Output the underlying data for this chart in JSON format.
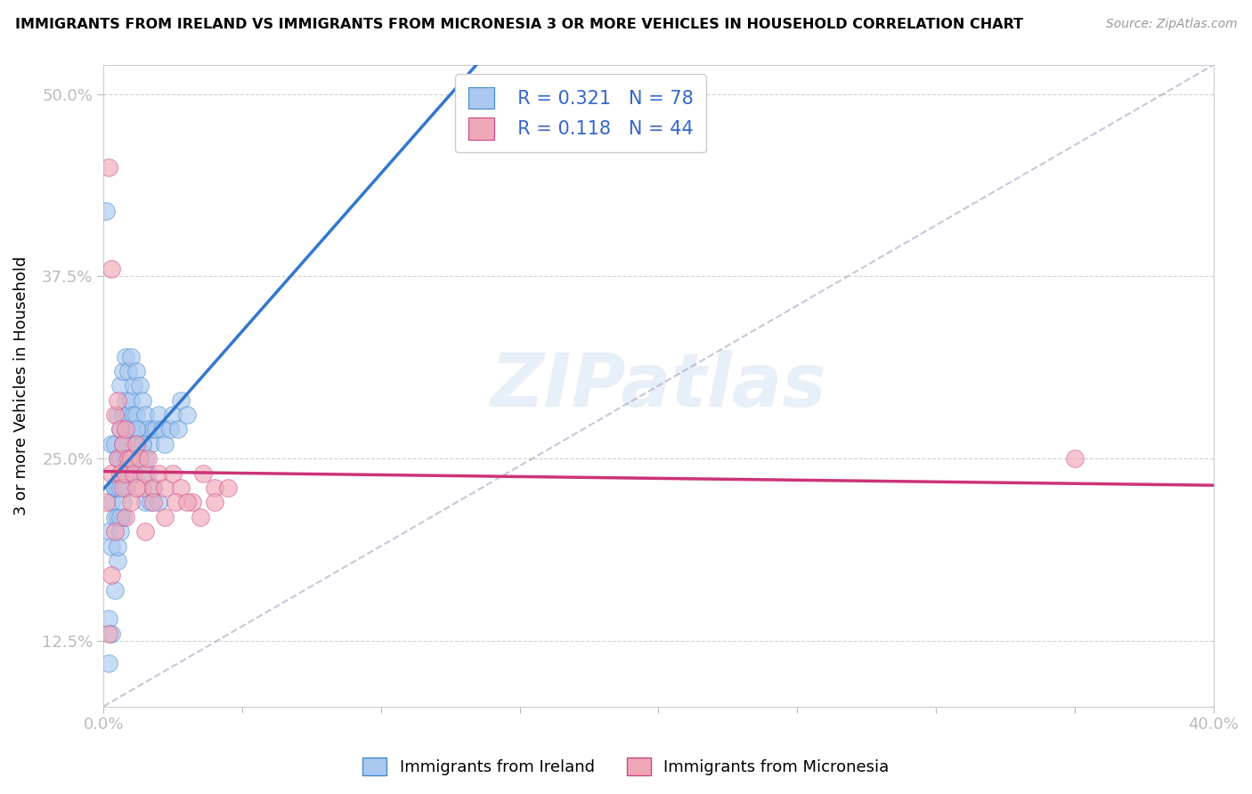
{
  "title": "IMMIGRANTS FROM IRELAND VS IMMIGRANTS FROM MICRONESIA 3 OR MORE VEHICLES IN HOUSEHOLD CORRELATION CHART",
  "source": "Source: ZipAtlas.com",
  "ylabel": "3 or more Vehicles in Household",
  "legend_label_blue": "Immigrants from Ireland",
  "legend_label_pink": "Immigrants from Micronesia",
  "R_blue": 0.321,
  "N_blue": 78,
  "R_pink": 0.118,
  "N_pink": 44,
  "xlim": [
    0.0,
    0.4
  ],
  "ylim": [
    0.08,
    0.52
  ],
  "xtick_vals": [
    0.0,
    0.05,
    0.1,
    0.15,
    0.2,
    0.25,
    0.3,
    0.35,
    0.4
  ],
  "ytick_vals": [
    0.125,
    0.25,
    0.375,
    0.5
  ],
  "ytick_labels": [
    "12.5%",
    "25.0%",
    "37.5%",
    "50.0%"
  ],
  "color_blue_fill": "#aac8f0",
  "color_blue_edge": "#4488cc",
  "color_pink_fill": "#f0a8b8",
  "color_pink_edge": "#cc4488",
  "color_blue_line": "#3377cc",
  "color_pink_line": "#cc3377",
  "color_ref_line": "#9999bb",
  "watermark": "ZIPatlas",
  "blue_x": [
    0.001,
    0.002,
    0.002,
    0.003,
    0.003,
    0.003,
    0.004,
    0.004,
    0.004,
    0.004,
    0.005,
    0.005,
    0.005,
    0.005,
    0.005,
    0.006,
    0.006,
    0.006,
    0.006,
    0.006,
    0.007,
    0.007,
    0.007,
    0.007,
    0.007,
    0.008,
    0.008,
    0.008,
    0.008,
    0.009,
    0.009,
    0.009,
    0.01,
    0.01,
    0.01,
    0.01,
    0.011,
    0.011,
    0.011,
    0.012,
    0.012,
    0.012,
    0.013,
    0.013,
    0.014,
    0.014,
    0.015,
    0.015,
    0.016,
    0.017,
    0.018,
    0.019,
    0.02,
    0.021,
    0.022,
    0.024,
    0.025,
    0.027,
    0.028,
    0.03,
    0.002,
    0.003,
    0.004,
    0.005,
    0.006,
    0.007,
    0.008,
    0.009,
    0.01,
    0.011,
    0.012,
    0.013,
    0.014,
    0.015,
    0.016,
    0.017,
    0.018,
    0.02
  ],
  "blue_y": [
    0.42,
    0.2,
    0.14,
    0.22,
    0.26,
    0.19,
    0.23,
    0.26,
    0.23,
    0.21,
    0.28,
    0.25,
    0.23,
    0.21,
    0.18,
    0.3,
    0.27,
    0.25,
    0.23,
    0.2,
    0.31,
    0.28,
    0.26,
    0.24,
    0.21,
    0.32,
    0.29,
    0.27,
    0.25,
    0.31,
    0.28,
    0.25,
    0.32,
    0.29,
    0.27,
    0.24,
    0.3,
    0.28,
    0.25,
    0.31,
    0.28,
    0.26,
    0.3,
    0.27,
    0.29,
    0.26,
    0.28,
    0.25,
    0.27,
    0.26,
    0.27,
    0.27,
    0.28,
    0.27,
    0.26,
    0.27,
    0.28,
    0.27,
    0.29,
    0.28,
    0.11,
    0.13,
    0.16,
    0.19,
    0.21,
    0.22,
    0.23,
    0.24,
    0.25,
    0.26,
    0.27,
    0.25,
    0.26,
    0.22,
    0.24,
    0.22,
    0.23,
    0.22
  ],
  "pink_x": [
    0.001,
    0.002,
    0.003,
    0.003,
    0.004,
    0.005,
    0.005,
    0.006,
    0.006,
    0.007,
    0.007,
    0.008,
    0.008,
    0.009,
    0.01,
    0.011,
    0.012,
    0.013,
    0.014,
    0.015,
    0.016,
    0.018,
    0.02,
    0.022,
    0.025,
    0.028,
    0.032,
    0.036,
    0.04,
    0.045,
    0.008,
    0.01,
    0.012,
    0.015,
    0.018,
    0.022,
    0.026,
    0.03,
    0.035,
    0.04,
    0.35,
    0.002,
    0.003,
    0.004
  ],
  "pink_y": [
    0.22,
    0.45,
    0.38,
    0.24,
    0.28,
    0.29,
    0.25,
    0.27,
    0.24,
    0.26,
    0.23,
    0.27,
    0.24,
    0.25,
    0.25,
    0.24,
    0.26,
    0.25,
    0.23,
    0.24,
    0.25,
    0.23,
    0.24,
    0.23,
    0.24,
    0.23,
    0.22,
    0.24,
    0.23,
    0.23,
    0.21,
    0.22,
    0.23,
    0.2,
    0.22,
    0.21,
    0.22,
    0.22,
    0.21,
    0.22,
    0.25,
    0.13,
    0.17,
    0.2
  ]
}
